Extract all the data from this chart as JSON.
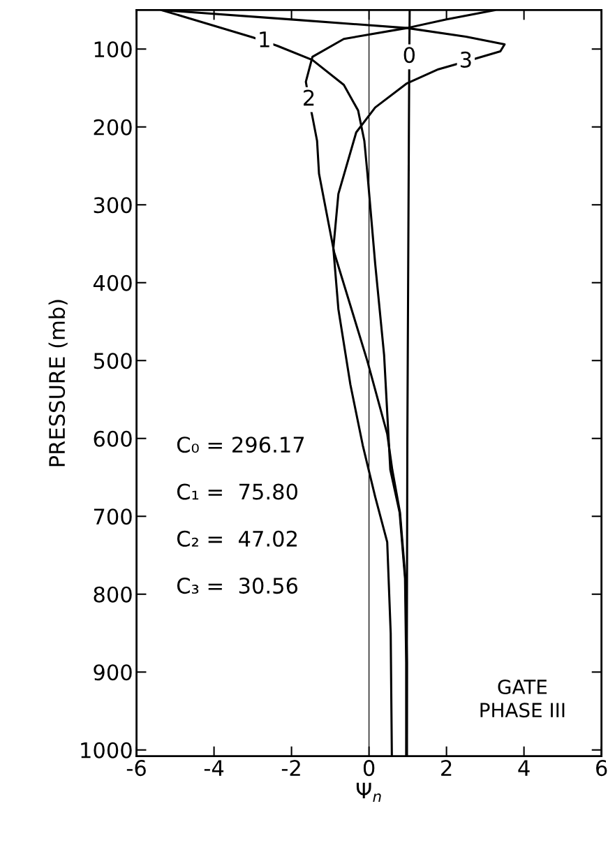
{
  "chart_data": {
    "type": "line",
    "xlabel": "Ψ$_{n}$",
    "ylabel": "PRESSURE (mb)",
    "xlim": [
      -6,
      6
    ],
    "xticks": [
      -6,
      -4,
      -2,
      0,
      2,
      4,
      6
    ],
    "ylim": [
      1008,
      50
    ],
    "yticks": [
      100,
      200,
      300,
      400,
      500,
      600,
      700,
      800,
      900,
      1000
    ],
    "grid": false,
    "marker": "none",
    "line_style": "solid",
    "ref_lines": [
      {
        "axis": "x",
        "value": 0,
        "color": "#000000"
      }
    ],
    "annotations": [
      "C₀ = 296.17",
      "C₁ =  75.80",
      "C₂ =  47.02",
      "C₃ =  30.56",
      "GATE\nPHASE III"
    ],
    "series": [
      {
        "name": "0",
        "color": "#000000",
        "x": [
          1.05,
          1.04,
          1.03,
          1.01,
          0.99,
          0.98,
          0.97
        ],
        "values": [
          50,
          110,
          200,
          400,
          600,
          800,
          1008
        ]
      },
      {
        "name": "1",
        "color": "#000000",
        "x": [
          -5.35,
          -3.0,
          -2.7,
          -2.36,
          -1.46,
          -0.65,
          -0.28,
          -0.12,
          -0.04,
          0.16,
          0.39,
          0.5,
          0.55,
          0.79,
          0.93,
          0.96,
          0.96
        ],
        "values": [
          50,
          85,
          90,
          96,
          114,
          146,
          179,
          218,
          260,
          376,
          493,
          594,
          640,
          695,
          780,
          888,
          1008
        ]
      },
      {
        "name": "2",
        "color": "#000000",
        "x": [
          3.25,
          2.0,
          0.98,
          -0.65,
          -1.46,
          -1.63,
          -1.55,
          -1.46,
          -1.34,
          -1.29,
          -0.9,
          -0.04,
          0.47,
          0.6,
          0.8,
          0.94,
          0.98,
          0.98
        ],
        "values": [
          50,
          62,
          73,
          87,
          110,
          142,
          165,
          187,
          218,
          260,
          361,
          501,
          594,
          640,
          695,
          780,
          888,
          1008
        ]
      },
      {
        "name": "3",
        "color": "#000000",
        "x": [
          -5.35,
          -2.0,
          0.98,
          2.5,
          3.5,
          3.39,
          2.5,
          1.79,
          0.98,
          0.16,
          -0.33,
          -0.79,
          -0.92,
          -0.79,
          -0.48,
          -0.16,
          0.16,
          0.47,
          0.56,
          0.59
        ],
        "values": [
          50,
          62,
          73,
          84,
          94,
          103,
          116,
          126,
          144,
          175,
          207,
          286,
          356,
          434,
          531,
          609,
          675,
          733,
          850,
          1008
        ]
      }
    ]
  }
}
